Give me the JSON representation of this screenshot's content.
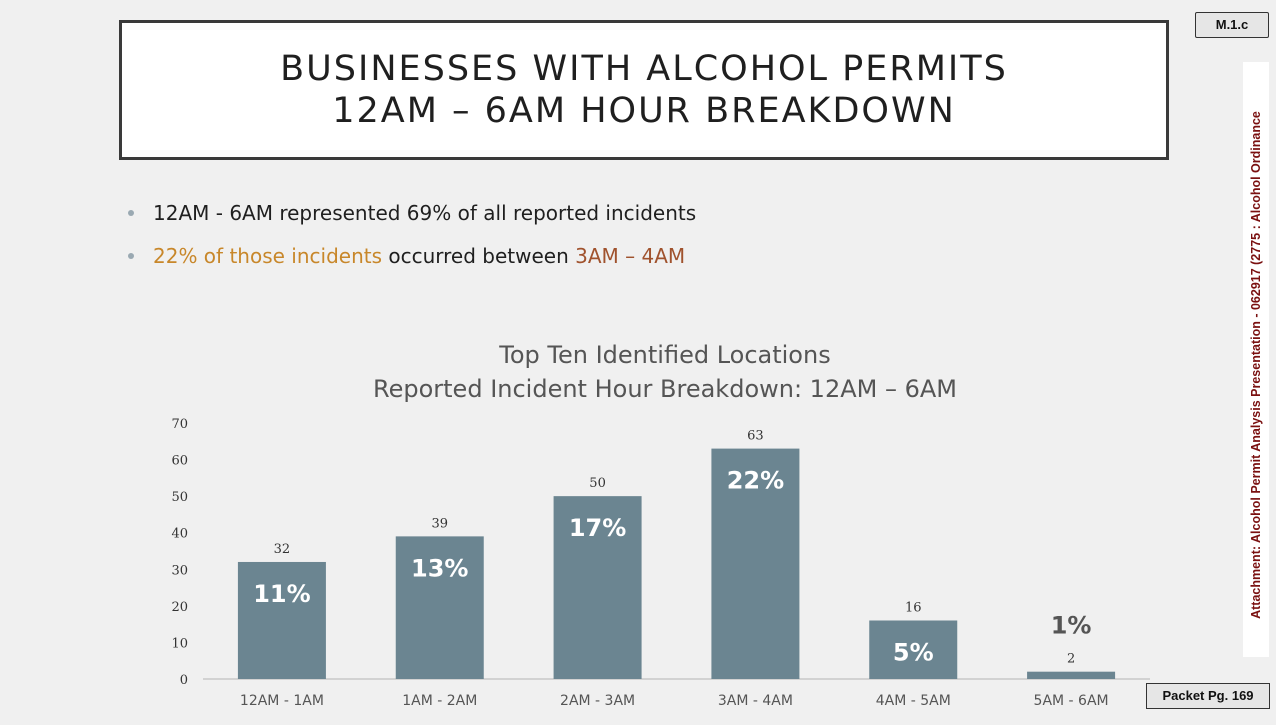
{
  "slide": {
    "title_line1": "BUSINESSES WITH ALCOHOL PERMITS",
    "title_line2": "12AM – 6AM HOUR BREAKDOWN",
    "badge": "M.1.c",
    "packet": "Packet Pg. 169",
    "side_label": "Attachment: Alcohol Permit Analysis Presentation - 062917  (2775 : Alcohol Ordinance",
    "bullets": [
      {
        "text": "12AM - 6AM represented 69% of all reported incidents"
      },
      {
        "part1": "22% of those incidents",
        "part2": " occurred between ",
        "part3": "3AM – 4AM"
      }
    ]
  },
  "colors": {
    "bar": "#6b8591",
    "highlight_gold": "#c8872a",
    "highlight_rust": "#a0522d",
    "side_text": "#7a1010"
  },
  "chart_data": {
    "type": "bar",
    "title_line1": "Top Ten Identified Locations",
    "title_line2": "Reported Incident Hour Breakdown: 12AM – 6AM",
    "categories": [
      "12AM - 1AM",
      "1AM - 2AM",
      "2AM - 3AM",
      "3AM - 4AM",
      "4AM - 5AM",
      "5AM - 6AM"
    ],
    "values": [
      32,
      39,
      50,
      63,
      16,
      2
    ],
    "percent_labels": [
      "11%",
      "13%",
      "17%",
      "22%",
      "5%",
      "1%"
    ],
    "yticks": [
      0,
      10,
      20,
      30,
      40,
      50,
      60,
      70
    ],
    "ylim": [
      0,
      70
    ],
    "grid": false,
    "legend": "none"
  }
}
